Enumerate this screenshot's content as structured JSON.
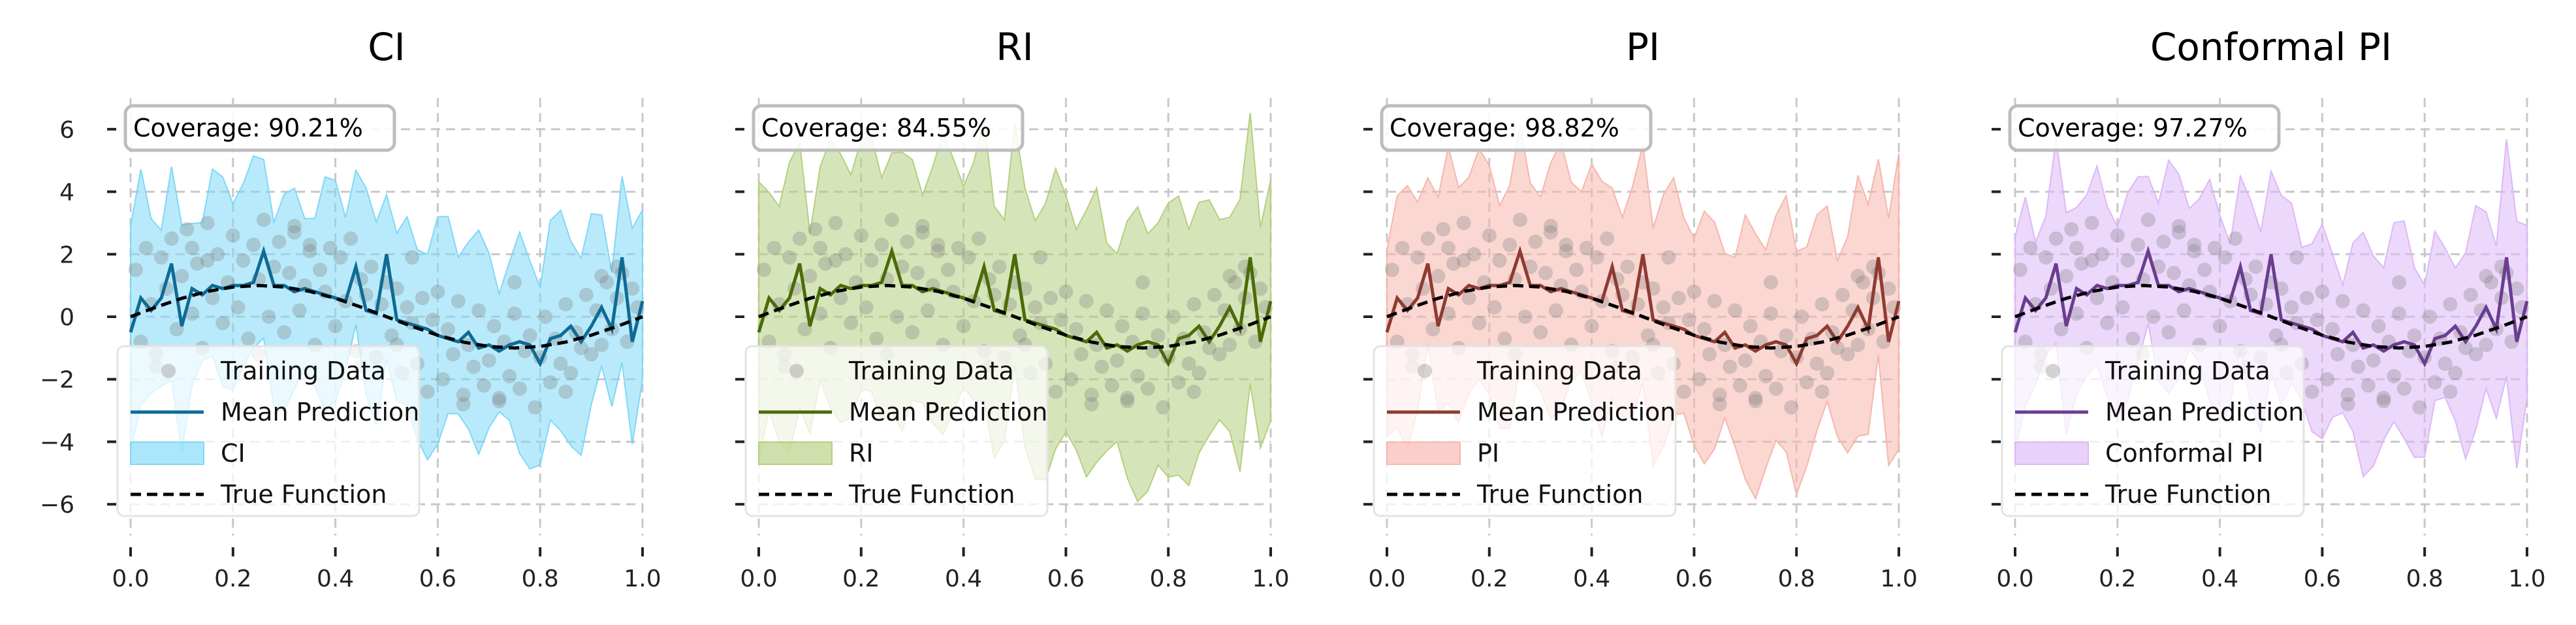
{
  "chart_data": [
    {
      "type": "line",
      "title": "CI",
      "coverage_text": "Coverage: 90.21%",
      "band_label": "CI",
      "color": "#0e6b94",
      "band_color": "#7fd8f7",
      "xlim": [
        0,
        1
      ],
      "ylim": [
        -7,
        7
      ],
      "x_ticks": [
        0.0,
        0.2,
        0.4,
        0.6,
        0.8,
        1.0
      ],
      "x_tick_labels": [
        "0.0",
        "0.2",
        "0.4",
        "0.6",
        "0.8",
        "1.0"
      ],
      "y_ticks": [
        -6,
        -4,
        -2,
        0,
        2,
        4,
        6
      ],
      "y_tick_labels": [
        "−6",
        "−4",
        "−2",
        "0",
        "2",
        "4",
        "6"
      ],
      "band_halfwidth": 3.0,
      "legend": [
        "Training Data",
        "Mean Prediction",
        "CI",
        "True Function"
      ],
      "grid": true
    },
    {
      "type": "line",
      "title": "RI",
      "coverage_text": "Coverage: 84.55%",
      "band_label": "RI",
      "color": "#4a6b08",
      "band_color": "#b5cf80",
      "xlim": [
        0,
        1
      ],
      "ylim": [
        -7,
        7
      ],
      "x_ticks": [
        0.0,
        0.2,
        0.4,
        0.6,
        0.8,
        1.0
      ],
      "x_tick_labels": [
        "0.0",
        "0.2",
        "0.4",
        "0.6",
        "0.8",
        "1.0"
      ],
      "y_ticks": [
        -6,
        -4,
        -2,
        0,
        2,
        4,
        6
      ],
      "y_tick_labels": [],
      "band_halfwidth": 4.0,
      "legend": [
        "Training Data",
        "Mean Prediction",
        "RI",
        "True Function"
      ],
      "grid": true
    },
    {
      "type": "line",
      "title": "PI",
      "coverage_text": "Coverage: 98.82%",
      "band_label": "PI",
      "color": "#8e3b32",
      "band_color": "#f7b6ad",
      "xlim": [
        0,
        1
      ],
      "ylim": [
        -7,
        7
      ],
      "x_ticks": [
        0.0,
        0.2,
        0.4,
        0.6,
        0.8,
        1.0
      ],
      "x_tick_labels": [
        "0.0",
        "0.2",
        "0.4",
        "0.6",
        "0.8",
        "1.0"
      ],
      "y_ticks": [
        -6,
        -4,
        -2,
        0,
        2,
        4,
        6
      ],
      "y_tick_labels": [],
      "band_halfwidth": 3.6,
      "legend": [
        "Training Data",
        "Mean Prediction",
        "PI",
        "True Function"
      ],
      "grid": true
    },
    {
      "type": "line",
      "title": "Conformal PI",
      "coverage_text": "Coverage: 97.27%",
      "band_label": "Conformal PI",
      "color": "#6a3d8f",
      "band_color": "#dcb8f7",
      "xlim": [
        0,
        1
      ],
      "ylim": [
        -7,
        7
      ],
      "x_ticks": [
        0.0,
        0.2,
        0.4,
        0.6,
        0.8,
        1.0
      ],
      "x_tick_labels": [
        "0.0",
        "0.2",
        "0.4",
        "0.6",
        "0.8",
        "1.0"
      ],
      "y_ticks": [
        -6,
        -4,
        -2,
        0,
        2,
        4,
        6
      ],
      "y_tick_labels": [],
      "band_halfwidth": 3.0,
      "legend": [
        "Training Data",
        "Mean Prediction",
        "Conformal PI",
        "True Function"
      ],
      "grid": true
    }
  ],
  "true_function": {
    "x": [
      0.0,
      0.05,
      0.1,
      0.15,
      0.2,
      0.25,
      0.3,
      0.35,
      0.4,
      0.45,
      0.5,
      0.55,
      0.6,
      0.65,
      0.7,
      0.75,
      0.8,
      0.85,
      0.9,
      0.95,
      1.0
    ],
    "y": [
      0.0,
      0.31,
      0.59,
      0.81,
      0.95,
      1.0,
      0.95,
      0.81,
      0.59,
      0.31,
      0.0,
      -0.31,
      -0.59,
      -0.81,
      -0.95,
      -1.0,
      -0.95,
      -0.81,
      -0.59,
      -0.31,
      0.0
    ]
  },
  "mean_prediction": {
    "x": [
      0.0,
      0.02,
      0.04,
      0.06,
      0.08,
      0.1,
      0.12,
      0.14,
      0.16,
      0.18,
      0.2,
      0.22,
      0.24,
      0.26,
      0.28,
      0.3,
      0.32,
      0.34,
      0.36,
      0.38,
      0.4,
      0.42,
      0.44,
      0.46,
      0.48,
      0.5,
      0.52,
      0.54,
      0.56,
      0.58,
      0.6,
      0.62,
      0.64,
      0.66,
      0.68,
      0.7,
      0.72,
      0.74,
      0.76,
      0.78,
      0.8,
      0.82,
      0.84,
      0.86,
      0.88,
      0.9,
      0.92,
      0.94,
      0.96,
      0.98,
      1.0
    ],
    "y": [
      -0.5,
      0.6,
      0.2,
      0.6,
      1.7,
      -0.3,
      0.9,
      0.7,
      1.0,
      0.9,
      1.0,
      1.0,
      1.1,
      2.1,
      1.0,
      1.0,
      0.8,
      0.9,
      0.8,
      0.7,
      0.6,
      0.5,
      1.6,
      0.2,
      0.1,
      2.0,
      -0.1,
      -0.2,
      -0.3,
      -0.4,
      -0.6,
      -0.7,
      -0.8,
      -0.5,
      -1.0,
      -0.9,
      -1.1,
      -0.9,
      -0.8,
      -0.9,
      -1.5,
      -0.7,
      -0.6,
      -0.3,
      -0.8,
      -0.3,
      0.3,
      -0.4,
      1.9,
      -0.8,
      0.5
    ]
  },
  "training_data": {
    "x": [
      0.01,
      0.02,
      0.03,
      0.04,
      0.05,
      0.06,
      0.07,
      0.08,
      0.09,
      0.1,
      0.11,
      0.12,
      0.13,
      0.14,
      0.15,
      0.16,
      0.17,
      0.18,
      0.19,
      0.2,
      0.21,
      0.22,
      0.23,
      0.24,
      0.25,
      0.26,
      0.27,
      0.28,
      0.29,
      0.3,
      0.31,
      0.32,
      0.33,
      0.34,
      0.35,
      0.36,
      0.37,
      0.38,
      0.39,
      0.4,
      0.41,
      0.42,
      0.43,
      0.44,
      0.45,
      0.46,
      0.47,
      0.48,
      0.49,
      0.5,
      0.51,
      0.52,
      0.53,
      0.54,
      0.55,
      0.56,
      0.57,
      0.58,
      0.59,
      0.6,
      0.61,
      0.62,
      0.63,
      0.64,
      0.65,
      0.66,
      0.67,
      0.68,
      0.69,
      0.7,
      0.71,
      0.72,
      0.73,
      0.74,
      0.75,
      0.76,
      0.77,
      0.78,
      0.79,
      0.8,
      0.81,
      0.82,
      0.83,
      0.84,
      0.85,
      0.86,
      0.87,
      0.88,
      0.89,
      0.9,
      0.91,
      0.92,
      0.93,
      0.94,
      0.95,
      0.96,
      0.97,
      0.98,
      0.99,
      0.05,
      0.15,
      0.25,
      0.35,
      0.45,
      0.55,
      0.65,
      0.75,
      0.85,
      0.95,
      0.12,
      0.32,
      0.52,
      0.72,
      0.92
    ],
    "y": [
      1.5,
      -0.8,
      2.2,
      0.4,
      -1.2,
      1.9,
      0.9,
      2.5,
      -0.4,
      1.3,
      2.8,
      0.1,
      1.7,
      -1.0,
      3.0,
      0.6,
      2.0,
      -0.2,
      1.1,
      2.6,
      0.3,
      1.8,
      -0.7,
      2.3,
      1.2,
      3.1,
      0.0,
      1.6,
      2.4,
      -0.5,
      1.4,
      2.7,
      0.2,
      1.0,
      2.1,
      -0.9,
      1.5,
      0.8,
      2.2,
      -0.3,
      1.9,
      0.5,
      2.5,
      -1.1,
      1.2,
      0.7,
      1.6,
      -1.3,
      0.4,
      1.1,
      -0.6,
      0.9,
      -1.8,
      0.3,
      -0.2,
      -1.5,
      0.6,
      -2.4,
      -0.1,
      0.8,
      -2.0,
      -0.4,
      -1.2,
      0.5,
      -2.8,
      -0.9,
      -1.6,
      0.2,
      -2.2,
      -1.4,
      -0.3,
      -2.6,
      -0.8,
      -1.9,
      0.1,
      -2.3,
      -1.1,
      -0.6,
      -2.9,
      -1.3,
      0.0,
      -2.1,
      -0.7,
      -1.5,
      0.4,
      -1.8,
      -0.5,
      -1.0,
      0.7,
      -1.2,
      0.2,
      -0.9,
      1.1,
      -0.4,
      0.6,
      1.4,
      -0.8,
      0.9,
      0.3,
      -1.6,
      1.8,
      -1.2,
      2.3,
      -1.6,
      1.9,
      -2.5,
      1.1,
      -2.4,
      1.6,
      2.2,
      2.9,
      -0.9,
      -2.7,
      1.3
    ]
  }
}
